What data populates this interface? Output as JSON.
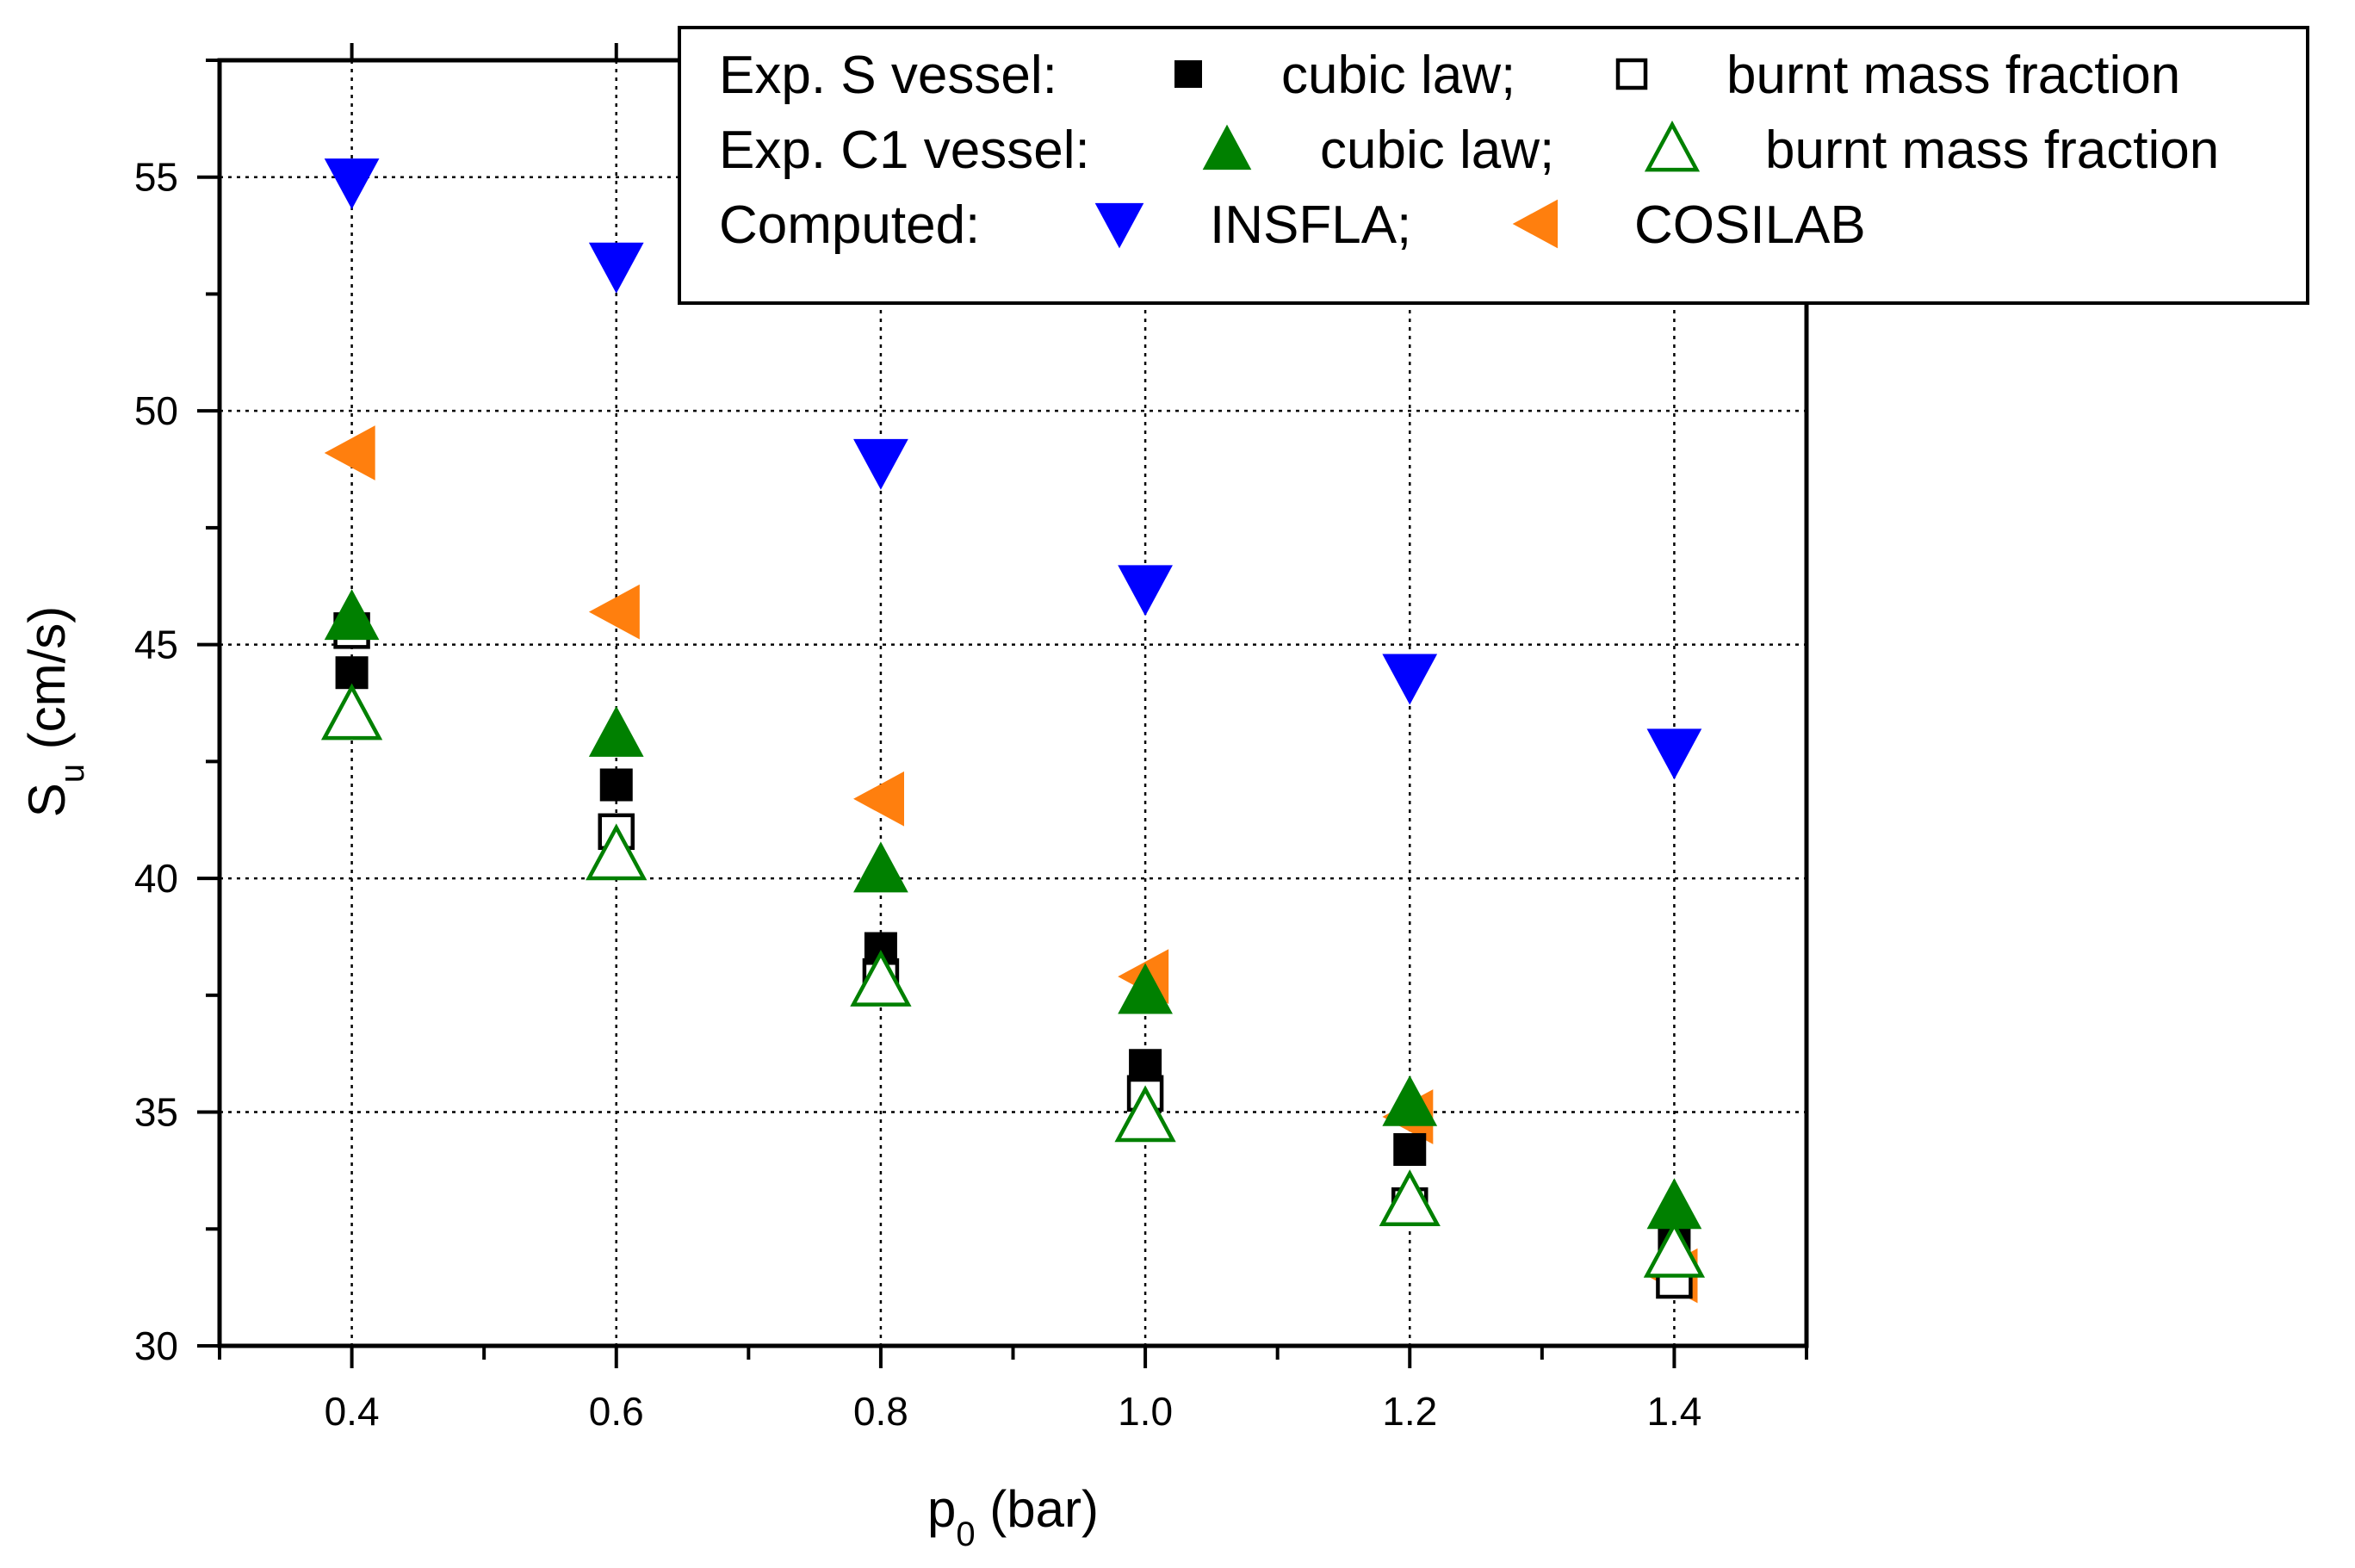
{
  "chart_data": {
    "type": "scatter",
    "title": "",
    "xlabel": {
      "main": "p",
      "sub": "0",
      "rest": " (bar)"
    },
    "ylabel": {
      "main": "S",
      "sub": "u",
      "rest": " (cm/s)"
    },
    "xlim": [
      0.3,
      1.5
    ],
    "ylim": [
      30,
      57.5
    ],
    "x_ticks": [
      0.4,
      0.6,
      0.8,
      1.0,
      1.2,
      1.4
    ],
    "x_tick_labels": [
      "0.4",
      "0.6",
      "0.8",
      "1.0",
      "1.2",
      "1.4"
    ],
    "x_minor_ticks": [
      0.3,
      0.5,
      0.7,
      0.9,
      1.1,
      1.3,
      1.5
    ],
    "y_ticks": [
      30,
      35,
      40,
      45,
      50,
      55
    ],
    "y_tick_labels": [
      "30",
      "35",
      "40",
      "45",
      "50",
      "55"
    ],
    "y_minor_ticks": [
      32.5,
      37.5,
      42.5,
      47.5,
      52.5,
      57.5
    ],
    "grid": true,
    "legend_position": "top-right",
    "legend": {
      "rows": [
        {
          "label": "Exp. S vessel:",
          "entries": [
            {
              "series": "s_cubic",
              "text": "cubic law;"
            },
            {
              "series": "s_bmf",
              "text": "burnt mass fraction"
            }
          ]
        },
        {
          "label": "Exp. C1 vessel:",
          "entries": [
            {
              "series": "c1_cubic",
              "text": "cubic law;"
            },
            {
              "series": "c1_bmf",
              "text": "burnt mass fraction"
            }
          ]
        },
        {
          "label": "Computed:",
          "entries": [
            {
              "series": "insfla",
              "text": "INSFLA;"
            },
            {
              "series": "cosilab",
              "text": "COSILAB"
            }
          ]
        }
      ]
    },
    "series": [
      {
        "id": "cosilab",
        "name": "COSILAB",
        "marker": "triangle-left",
        "filled": true,
        "color": "#ff7f0e",
        "x": [
          0.4,
          0.6,
          0.8,
          1.0,
          1.2,
          1.4
        ],
        "y": [
          49.1,
          45.7,
          41.7,
          37.9,
          34.9,
          31.5
        ]
      },
      {
        "id": "insfla",
        "name": "INSFLA",
        "marker": "triangle-down",
        "filled": true,
        "color": "#0000ff",
        "x": [
          0.4,
          0.6,
          0.8,
          1.0,
          1.2,
          1.4
        ],
        "y": [
          54.9,
          53.1,
          48.9,
          46.2,
          44.3,
          42.7
        ]
      },
      {
        "id": "s_bmf",
        "name": "Exp. S vessel: burnt mass fraction",
        "marker": "square",
        "filled": false,
        "color": "#000000",
        "x": [
          0.4,
          0.6,
          0.8,
          1.0,
          1.2,
          1.4
        ],
        "y": [
          45.3,
          41.0,
          37.9,
          35.4,
          33.0,
          31.4
        ]
      },
      {
        "id": "s_cubic",
        "name": "Exp. S vessel: cubic law",
        "marker": "square",
        "filled": true,
        "color": "#000000",
        "x": [
          0.4,
          0.6,
          0.8,
          1.0,
          1.2,
          1.4
        ],
        "y": [
          44.4,
          42.0,
          38.5,
          36.0,
          34.2,
          32.2
        ]
      },
      {
        "id": "c1_cubic",
        "name": "Exp. C1 vessel: cubic law",
        "marker": "triangle-up",
        "filled": true,
        "color": "#008000",
        "x": [
          0.4,
          0.6,
          0.8,
          1.0,
          1.2,
          1.4
        ],
        "y": [
          45.6,
          43.1,
          40.2,
          37.6,
          35.2,
          33.0
        ]
      },
      {
        "id": "c1_bmf",
        "name": "Exp. C1 vessel: burnt mass fraction",
        "marker": "triangle-up",
        "filled": false,
        "color": "#008000",
        "x": [
          0.4,
          0.6,
          0.8,
          1.0,
          1.2,
          1.4
        ],
        "y": [
          43.5,
          40.5,
          37.8,
          34.9,
          33.1,
          32.0
        ]
      }
    ]
  }
}
